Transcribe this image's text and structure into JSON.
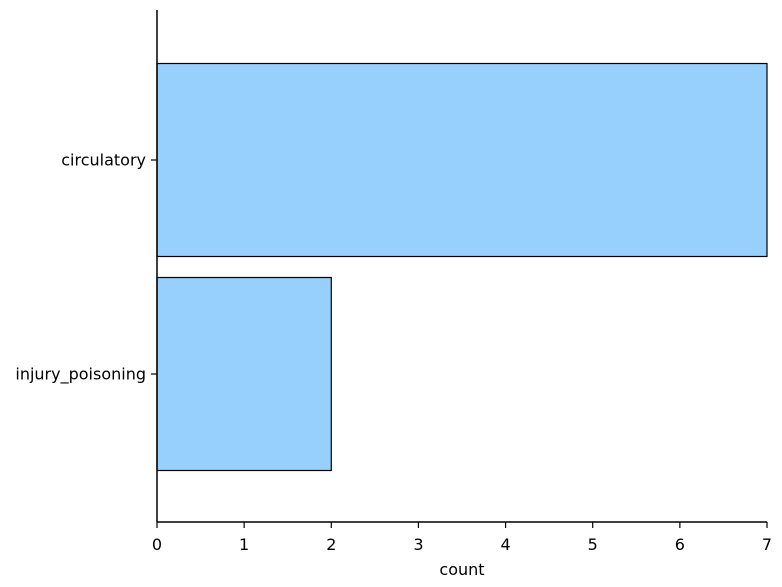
{
  "chart_data": {
    "type": "bar",
    "orientation": "horizontal",
    "categories": [
      "circulatory",
      "injury_poisoning"
    ],
    "values": [
      7,
      2
    ],
    "xlabel": "count",
    "ylabel": "",
    "xlim": [
      0,
      7
    ],
    "xticks": [
      "0",
      "1",
      "2",
      "3",
      "4",
      "5",
      "6",
      "7"
    ],
    "grid": false,
    "bar_color": "#97cffd",
    "edge_color": "#000000"
  }
}
